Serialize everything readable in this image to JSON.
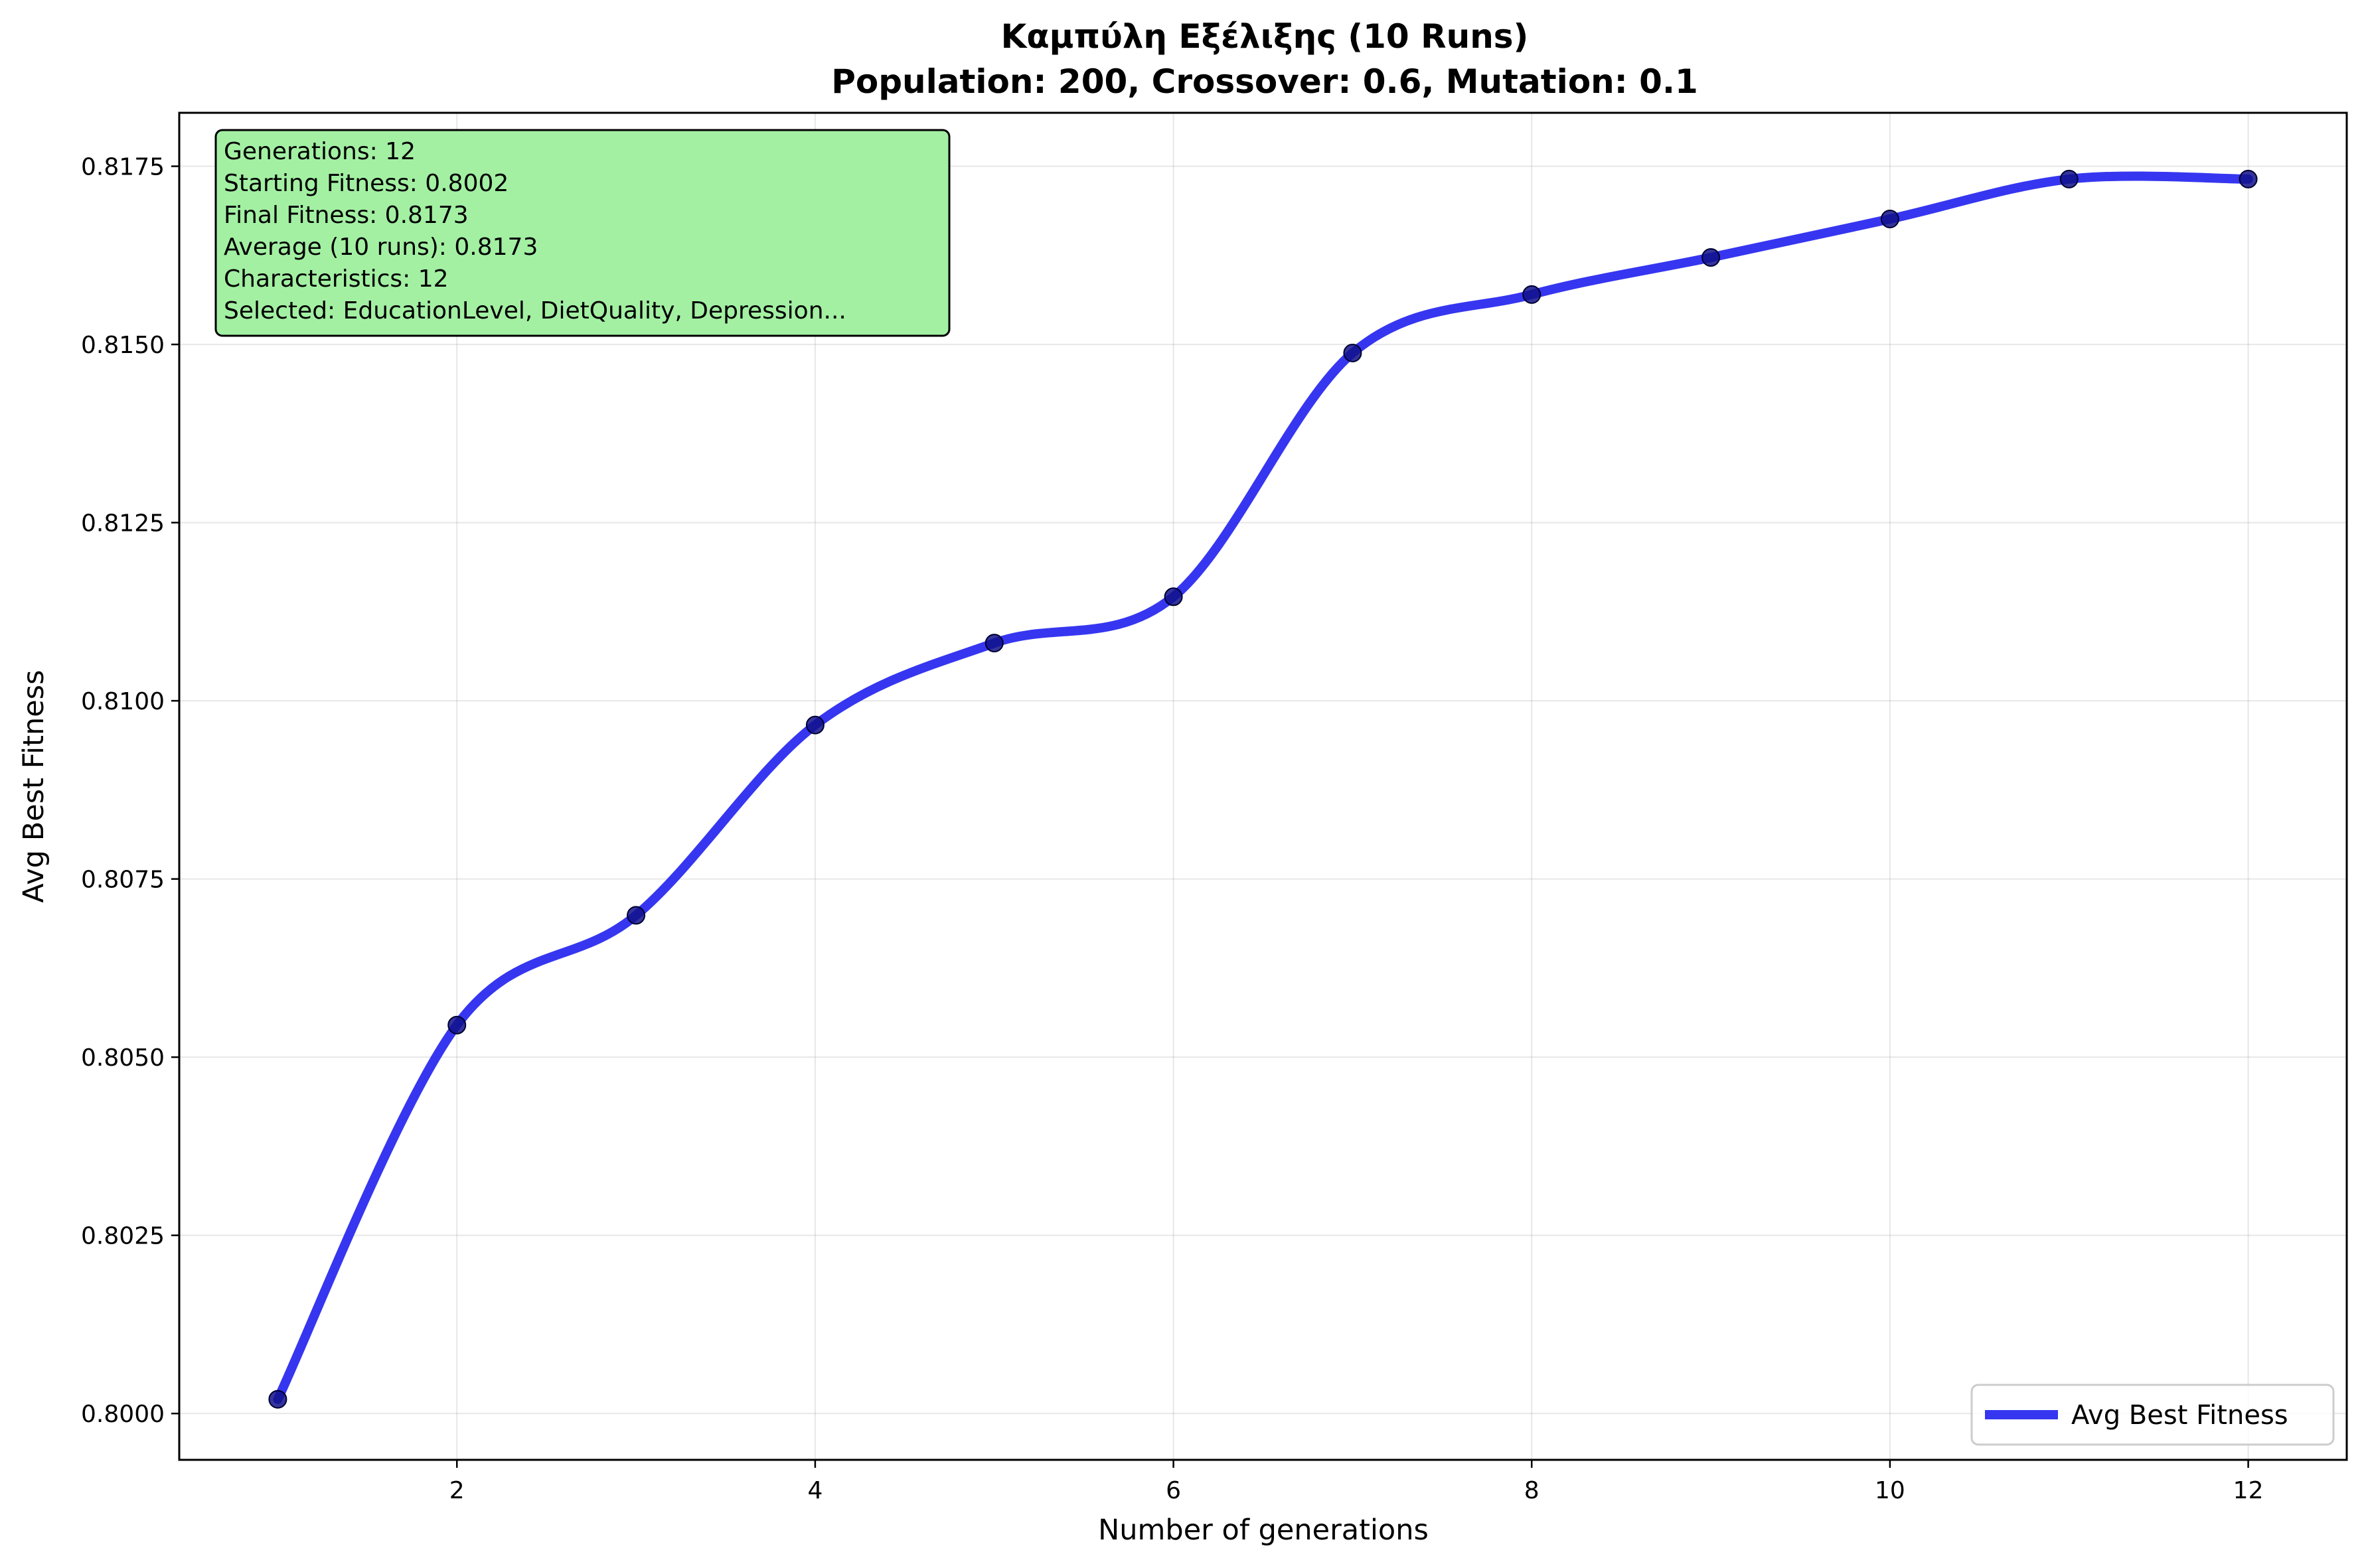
{
  "chart_data": {
    "type": "line",
    "title": "Καμπύλη Εξέλιξης (10 Runs)",
    "subtitle": "Population: 200, Crossover: 0.6, Mutation: 0.1",
    "xlabel": "Number of generations",
    "ylabel": "Avg Best Fitness",
    "xlim": [
      0.45,
      12.55
    ],
    "ylim": [
      0.79935,
      0.81825
    ],
    "x_ticks": [
      2,
      4,
      6,
      8,
      10,
      12
    ],
    "y_ticks": [
      0.8,
      0.8025,
      0.805,
      0.8075,
      0.81,
      0.8125,
      0.815,
      0.8175
    ],
    "x_tick_labels": [
      "2",
      "4",
      "6",
      "8",
      "10",
      "12"
    ],
    "y_tick_labels": [
      "0.8000",
      "0.8025",
      "0.8050",
      "0.8075",
      "0.8100",
      "0.8125",
      "0.8150",
      "0.8175"
    ],
    "grid": true,
    "legend": {
      "position": "lower-right",
      "entries": [
        "Avg Best Fitness"
      ]
    },
    "series": [
      {
        "name": "Avg Best Fitness",
        "color": "#2020ee",
        "marker_color": "#10108a",
        "x": [
          1,
          2,
          3,
          4,
          5,
          6,
          7,
          8,
          9,
          10,
          11,
          12
        ],
        "values": [
          0.8002,
          0.80545,
          0.80699,
          0.80966,
          0.81081,
          0.81146,
          0.81488,
          0.8157,
          0.81622,
          0.81676,
          0.81732,
          0.81732
        ]
      }
    ],
    "annotation_box": {
      "background": "#a3f0a3",
      "lines": [
        "Generations: 12",
        "Starting Fitness: 0.8002",
        "Final Fitness: 0.8173",
        "Average (10 runs): 0.8173",
        "Characteristics: 12",
        "Selected: EducationLevel, DietQuality, Depression..."
      ]
    }
  }
}
